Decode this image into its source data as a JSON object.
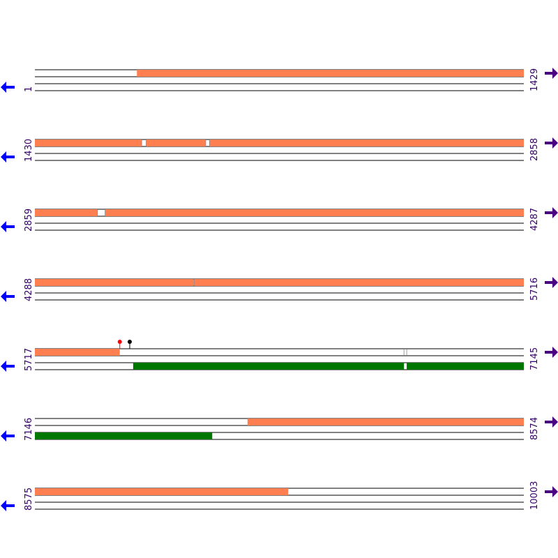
{
  "colors": {
    "forward_feature": "#ff7f50",
    "reverse_feature": "#007700",
    "arrow_forward": "#4b0082",
    "arrow_reverse": "#0000ff",
    "label": "#330066",
    "line": "#000000",
    "marker_red": "#ff0000",
    "marker_black": "#000000"
  },
  "rows": [
    {
      "start": 1,
      "end": 1429,
      "start_label": "1",
      "end_label": "1429",
      "features": [
        {
          "frame": 0,
          "from": 299,
          "to": 1429
        }
      ],
      "gaps": [],
      "markers": []
    },
    {
      "start": 1430,
      "end": 2858,
      "start_label": "1430",
      "end_label": "2858",
      "features": [
        {
          "frame": 0,
          "from": 1430,
          "to": 1742
        },
        {
          "frame": 0,
          "from": 1755,
          "to": 1929
        },
        {
          "frame": 0,
          "from": 1940,
          "to": 2858
        }
      ],
      "gaps": [
        {
          "from": 1742,
          "to": 1755
        },
        {
          "from": 1929,
          "to": 1940
        }
      ],
      "markers": []
    },
    {
      "start": 2859,
      "end": 4287,
      "start_label": "2859",
      "end_label": "4287",
      "features": [
        {
          "frame": 0,
          "from": 2859,
          "to": 3042
        },
        {
          "frame": 0,
          "from": 3064,
          "to": 4287
        }
      ],
      "gaps": [
        {
          "from": 3042,
          "to": 3064
        }
      ],
      "markers": []
    },
    {
      "start": 4288,
      "end": 5716,
      "start_label": "4288",
      "end_label": "5716",
      "features": [
        {
          "frame": 0,
          "from": 4288,
          "to": 4751
        },
        {
          "frame": 0,
          "from": 4753,
          "to": 5716
        }
      ],
      "gaps": [
        {
          "from": 4751,
          "to": 4753
        }
      ],
      "markers": []
    },
    {
      "start": 5717,
      "end": 7145,
      "start_label": "5717",
      "end_label": "7145",
      "features": [
        {
          "frame": 0,
          "from": 5717,
          "to": 5965
        },
        {
          "frame": 2,
          "from": 6004,
          "to": 6795
        },
        {
          "frame": 2,
          "from": 6803,
          "to": 7145
        }
      ],
      "gaps": [
        {
          "from": 6795,
          "to": 6803
        }
      ],
      "markers": [
        {
          "pos": 5965,
          "color": "#ff0000"
        },
        {
          "pos": 5994,
          "color": "#000000"
        }
      ]
    },
    {
      "start": 7146,
      "end": 8574,
      "start_label": "7146",
      "end_label": "8574",
      "features": [
        {
          "frame": 0,
          "from": 7767,
          "to": 8574
        },
        {
          "frame": 2,
          "from": 7146,
          "to": 7664
        }
      ],
      "gaps": [],
      "markers": []
    },
    {
      "start": 8575,
      "end": 10003,
      "start_label": "8575",
      "end_label": "10003",
      "features": [
        {
          "frame": 0,
          "from": 8575,
          "to": 9315
        }
      ],
      "gaps": [],
      "markers": []
    }
  ]
}
